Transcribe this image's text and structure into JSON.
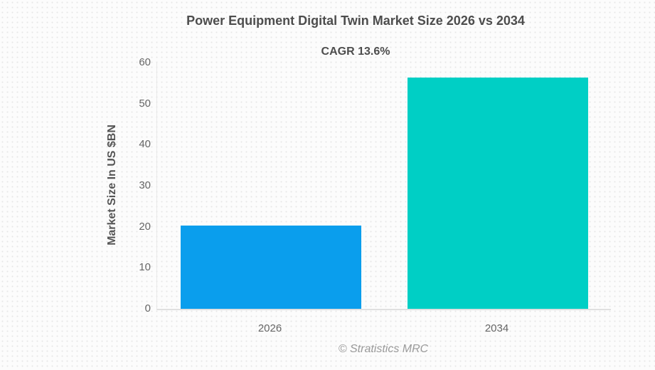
{
  "title": "Power Equipment Digital Twin Market Size 2026 vs 2034",
  "subtitle": "CAGR 13.6%",
  "footer": "© Stratistics MRC",
  "colors": {
    "bar_2026": "#0a9eed",
    "bar_2034": "#00cfc5",
    "title_text": "#4d4d4d",
    "axis_text": "#666666",
    "axis_line": "#e0e0e0",
    "footer_text": "#9a9a9a"
  },
  "chart_data": {
    "type": "bar",
    "categories": [
      "2026",
      "2034"
    ],
    "values": [
      20.3,
      56.4
    ],
    "bar_colors": [
      "#0a9eed",
      "#00cfc5"
    ],
    "title": "Power Equipment Digital Twin Market Size 2026 vs 2034",
    "subtitle": "CAGR 13.6%",
    "xlabel": "",
    "ylabel": "Market Size In US $BN",
    "ylim": [
      0,
      60
    ],
    "yticks": [
      0,
      10,
      20,
      30,
      40,
      50,
      60
    ],
    "grid": false,
    "legend": false,
    "annotations": [
      "CAGR 13.6%"
    ]
  }
}
